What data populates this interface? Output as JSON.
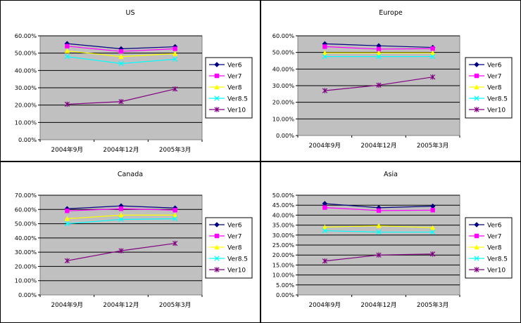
{
  "chart_data": [
    {
      "type": "line",
      "title": "US",
      "categories": [
        "2004年9月",
        "2004年12月",
        "2005年3月"
      ],
      "ylim": [
        0,
        0.6
      ],
      "yticks": [
        "0.00%",
        "10.00%",
        "20.00%",
        "30.00%",
        "40.00%",
        "50.00%",
        "60.00%"
      ],
      "ystep": 0.1,
      "series": [
        {
          "name": "Ver6",
          "values": [
            0.555,
            0.525,
            0.537
          ]
        },
        {
          "name": "Ver7",
          "values": [
            0.54,
            0.51,
            0.525
          ]
        },
        {
          "name": "Ver8",
          "values": [
            0.513,
            0.48,
            0.497
          ]
        },
        {
          "name": "Ver8.5",
          "values": [
            0.48,
            0.44,
            0.465
          ]
        },
        {
          "name": "Ver10",
          "values": [
            0.205,
            0.22,
            0.293
          ]
        }
      ]
    },
    {
      "type": "line",
      "title": "Europe",
      "categories": [
        "2004年9月",
        "2004年12月",
        "2005年3月"
      ],
      "ylim": [
        0,
        0.6
      ],
      "yticks": [
        "0.00%",
        "10.00%",
        "20.00%",
        "30.00%",
        "40.00%",
        "50.00%",
        "60.00%"
      ],
      "ystep": 0.1,
      "series": [
        {
          "name": "Ver6",
          "values": [
            0.552,
            0.54,
            0.53
          ]
        },
        {
          "name": "Ver7",
          "values": [
            0.535,
            0.52,
            0.523
          ]
        },
        {
          "name": "Ver8",
          "values": [
            0.497,
            0.497,
            0.497
          ]
        },
        {
          "name": "Ver8.5",
          "values": [
            0.475,
            0.475,
            0.475
          ]
        },
        {
          "name": "Ver10",
          "values": [
            0.27,
            0.303,
            0.352
          ]
        }
      ]
    },
    {
      "type": "line",
      "title": "Canada",
      "categories": [
        "2004年9月",
        "2004年12月",
        "2005年3月"
      ],
      "ylim": [
        0,
        0.7
      ],
      "yticks": [
        "0.00%",
        "10.00%",
        "20.00%",
        "30.00%",
        "40.00%",
        "50.00%",
        "60.00%",
        "70.00%"
      ],
      "ystep": 0.1,
      "series": [
        {
          "name": "Ver6",
          "values": [
            0.605,
            0.625,
            0.61
          ]
        },
        {
          "name": "Ver7",
          "values": [
            0.59,
            0.605,
            0.595
          ]
        },
        {
          "name": "Ver8",
          "values": [
            0.535,
            0.56,
            0.56
          ]
        },
        {
          "name": "Ver8.5",
          "values": [
            0.5,
            0.53,
            0.535
          ]
        },
        {
          "name": "Ver10",
          "values": [
            0.24,
            0.31,
            0.362
          ]
        }
      ]
    },
    {
      "type": "line",
      "title": "Asia",
      "categories": [
        "2004年9月",
        "2004年12月",
        "2005年3月"
      ],
      "ylim": [
        0,
        0.5
      ],
      "yticks": [
        "0.00%",
        "5.00%",
        "10.00%",
        "15.00%",
        "20.00%",
        "25.00%",
        "30.00%",
        "35.00%",
        "40.00%",
        "45.00%",
        "50.00%"
      ],
      "ystep": 0.05,
      "series": [
        {
          "name": "Ver6",
          "values": [
            0.458,
            0.437,
            0.445
          ]
        },
        {
          "name": "Ver7",
          "values": [
            0.438,
            0.423,
            0.425
          ]
        },
        {
          "name": "Ver8",
          "values": [
            0.34,
            0.347,
            0.337
          ]
        },
        {
          "name": "Ver8.5",
          "values": [
            0.322,
            0.315,
            0.315
          ]
        },
        {
          "name": "Ver10",
          "values": [
            0.17,
            0.2,
            0.205
          ]
        }
      ]
    }
  ],
  "series_styles": [
    {
      "color": "#000080",
      "marker": "diamond"
    },
    {
      "color": "#FF00FF",
      "marker": "square"
    },
    {
      "color": "#FFFF00",
      "marker": "triangle"
    },
    {
      "color": "#00FFFF",
      "marker": "x"
    },
    {
      "color": "#800080",
      "marker": "star"
    }
  ],
  "plot_background": "#C0C0C0"
}
